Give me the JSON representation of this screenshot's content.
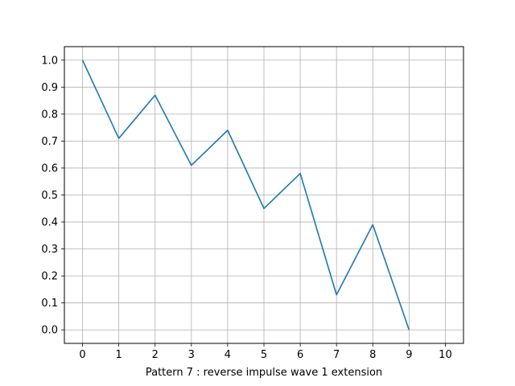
{
  "chart_data": {
    "type": "line",
    "title": "",
    "xlabel": "Pattern 7 : reverse impulse wave 1 extension",
    "ylabel": "",
    "xlim": [
      -0.5,
      10.5
    ],
    "ylim": [
      -0.05,
      1.05
    ],
    "x_ticks": [
      0,
      1,
      2,
      3,
      4,
      5,
      6,
      7,
      8,
      9,
      10
    ],
    "y_ticks": [
      "0.0",
      "0.1",
      "0.2",
      "0.3",
      "0.4",
      "0.5",
      "0.6",
      "0.7",
      "0.8",
      "0.9",
      "1.0"
    ],
    "grid": true,
    "series": [
      {
        "color": "#1f77b4",
        "x": [
          0,
          1,
          2,
          3,
          4,
          5,
          6,
          7,
          8,
          9
        ],
        "values": [
          1.0,
          0.71,
          0.87,
          0.61,
          0.74,
          0.45,
          0.58,
          0.13,
          0.39,
          0.0
        ]
      }
    ]
  }
}
